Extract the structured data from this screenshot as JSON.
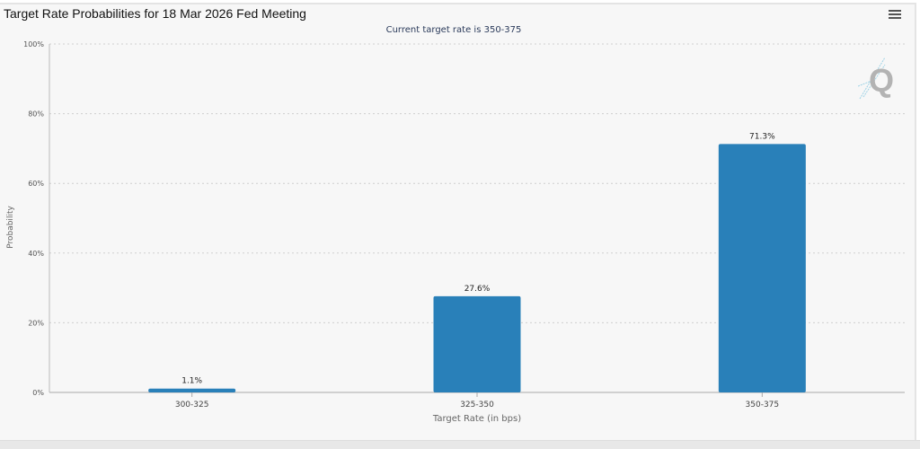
{
  "header": {
    "title": "Target Rate Probabilities for 18 Mar 2026 Fed Meeting",
    "menu_icon": "hamburger-menu-icon"
  },
  "logo": {
    "letter": "Q"
  },
  "colors": {
    "bar": "#2980b9",
    "background": "#f7f7f7"
  },
  "chart_data": {
    "type": "bar",
    "title": "Target Rate Probabilities for 18 Mar 2026 Fed Meeting",
    "subtitle": "Current target rate is 350-375",
    "xlabel": "Target Rate (in bps)",
    "ylabel": "Probability",
    "categories": [
      "300-325",
      "325-350",
      "350-375"
    ],
    "values": [
      1.1,
      27.6,
      71.3
    ],
    "data_labels": [
      "1.1%",
      "27.6%",
      "71.3%"
    ],
    "ylim": [
      0,
      100
    ],
    "yticks": [
      "0%",
      "20%",
      "40%",
      "60%",
      "80%",
      "100%"
    ],
    "grid": true,
    "legend": "none"
  }
}
